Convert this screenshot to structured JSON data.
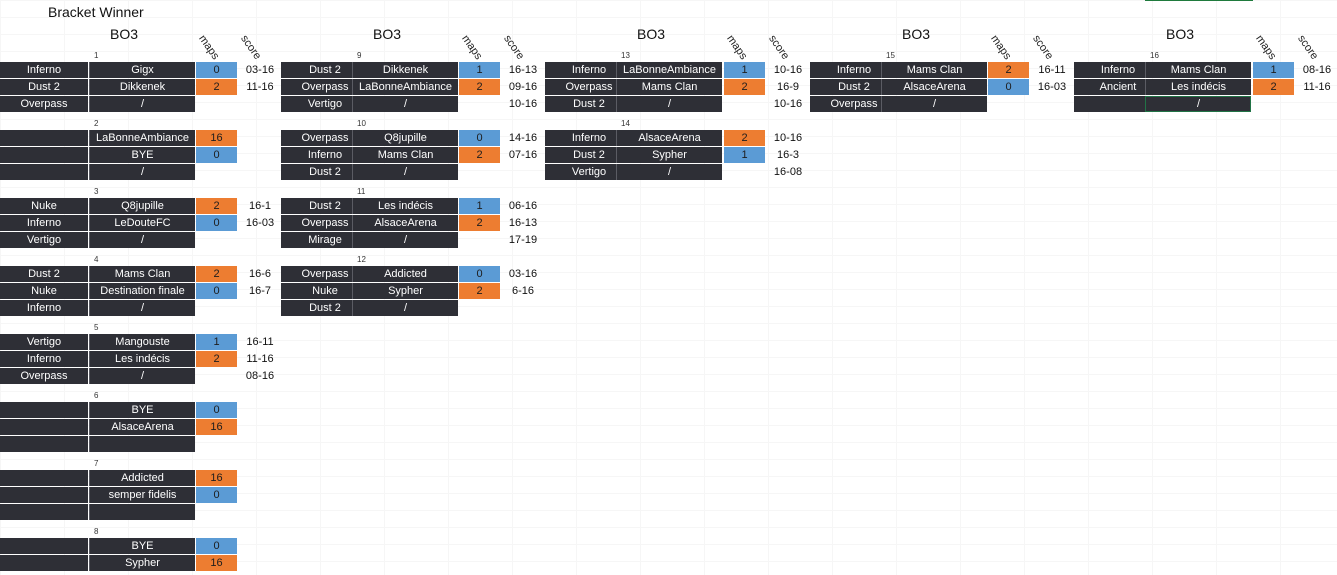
{
  "title": "Bracket Winner",
  "headers": {
    "format": "BO3",
    "maps": "maps",
    "score": "score"
  },
  "colors": {
    "dark": "#2e2f36",
    "blue": "#5b9bd5",
    "orange": "#ed7d31"
  },
  "rounds": [
    {
      "matches": [
        {
          "num": "1",
          "rows": [
            {
              "map": "Inferno",
              "team": "Gigx",
              "maps": "0",
              "color": "blue",
              "score": "03-16"
            },
            {
              "map": "Dust 2",
              "team": "Dikkenek",
              "maps": "2",
              "color": "orange",
              "score": "11-16"
            },
            {
              "map": "Overpass",
              "team": "/",
              "maps": "",
              "color": "",
              "score": ""
            }
          ]
        },
        {
          "num": "2",
          "rows": [
            {
              "map": "",
              "team": "LaBonneAmbiance",
              "maps": "16",
              "color": "orange",
              "score": ""
            },
            {
              "map": "",
              "team": "BYE",
              "maps": "0",
              "color": "blue",
              "score": ""
            },
            {
              "map": "",
              "team": "/",
              "maps": "",
              "color": "",
              "score": ""
            }
          ]
        },
        {
          "num": "3",
          "rows": [
            {
              "map": "Nuke",
              "team": "Q8jupille",
              "maps": "2",
              "color": "orange",
              "score": "16-1"
            },
            {
              "map": "Inferno",
              "team": "LeDouteFC",
              "maps": "0",
              "color": "blue",
              "score": "16-03"
            },
            {
              "map": "Vertigo",
              "team": "/",
              "maps": "",
              "color": "",
              "score": ""
            }
          ]
        },
        {
          "num": "4",
          "rows": [
            {
              "map": "Dust 2",
              "team": "Mams Clan",
              "maps": "2",
              "color": "orange",
              "score": "16-6"
            },
            {
              "map": "Nuke",
              "team": "Destination finale",
              "maps": "0",
              "color": "blue",
              "score": "16-7"
            },
            {
              "map": "Inferno",
              "team": "/",
              "maps": "",
              "color": "",
              "score": ""
            }
          ]
        },
        {
          "num": "5",
          "rows": [
            {
              "map": "Vertigo",
              "team": "Mangouste",
              "maps": "1",
              "color": "blue",
              "score": "16-11"
            },
            {
              "map": "Inferno",
              "team": "Les indécis",
              "maps": "2",
              "color": "orange",
              "score": "11-16"
            },
            {
              "map": "Overpass",
              "team": "/",
              "maps": "",
              "color": "",
              "score": "08-16"
            }
          ]
        },
        {
          "num": "6",
          "rows": [
            {
              "map": "",
              "team": "BYE",
              "maps": "0",
              "color": "blue",
              "score": ""
            },
            {
              "map": "",
              "team": "AlsaceArena",
              "maps": "16",
              "color": "orange",
              "score": ""
            },
            {
              "map": "",
              "team": "",
              "maps": "",
              "color": "",
              "score": ""
            }
          ]
        },
        {
          "num": "7",
          "rows": [
            {
              "map": "",
              "team": "Addicted",
              "maps": "16",
              "color": "orange",
              "score": ""
            },
            {
              "map": "",
              "team": "semper fidelis",
              "maps": "0",
              "color": "blue",
              "score": ""
            },
            {
              "map": "",
              "team": "",
              "maps": "",
              "color": "",
              "score": ""
            }
          ]
        },
        {
          "num": "8",
          "rows": [
            {
              "map": "",
              "team": "BYE",
              "maps": "0",
              "color": "blue",
              "score": ""
            },
            {
              "map": "",
              "team": "Sypher",
              "maps": "16",
              "color": "orange",
              "score": ""
            }
          ]
        }
      ]
    },
    {
      "matches": [
        {
          "num": "9",
          "rows": [
            {
              "map": "Dust 2",
              "team": "Dikkenek",
              "maps": "1",
              "color": "blue",
              "score": "16-13"
            },
            {
              "map": "Overpass",
              "team": "LaBonneAmbiance",
              "maps": "2",
              "color": "orange",
              "score": "09-16"
            },
            {
              "map": "Vertigo",
              "team": "/",
              "maps": "",
              "color": "",
              "score": "10-16"
            }
          ]
        },
        {
          "num": "10",
          "rows": [
            {
              "map": "Overpass",
              "team": "Q8jupille",
              "maps": "0",
              "color": "blue",
              "score": "14-16"
            },
            {
              "map": "Inferno",
              "team": "Mams Clan",
              "maps": "2",
              "color": "orange",
              "score": "07-16"
            },
            {
              "map": "Dust 2",
              "team": "/",
              "maps": "",
              "color": "",
              "score": ""
            }
          ]
        },
        {
          "num": "11",
          "rows": [
            {
              "map": "Dust 2",
              "team": "Les indécis",
              "maps": "1",
              "color": "blue",
              "score": "06-16"
            },
            {
              "map": "Overpass",
              "team": "AlsaceArena",
              "maps": "2",
              "color": "orange",
              "score": "16-13"
            },
            {
              "map": "Mirage",
              "team": "/",
              "maps": "",
              "color": "",
              "score": "17-19"
            }
          ]
        },
        {
          "num": "12",
          "rows": [
            {
              "map": "Overpass",
              "team": "Addicted",
              "maps": "0",
              "color": "blue",
              "score": "03-16"
            },
            {
              "map": "Nuke",
              "team": "Sypher",
              "maps": "2",
              "color": "orange",
              "score": "6-16"
            },
            {
              "map": "Dust 2",
              "team": "/",
              "maps": "",
              "color": "",
              "score": ""
            }
          ]
        }
      ]
    },
    {
      "matches": [
        {
          "num": "13",
          "rows": [
            {
              "map": "Inferno",
              "team": "LaBonneAmbiance",
              "maps": "1",
              "color": "blue",
              "score": "10-16"
            },
            {
              "map": "Overpass",
              "team": "Mams Clan",
              "maps": "2",
              "color": "orange",
              "score": "16-9"
            },
            {
              "map": "Dust 2",
              "team": "/",
              "maps": "",
              "color": "",
              "score": "10-16"
            }
          ]
        },
        {
          "num": "14",
          "rows": [
            {
              "map": "Inferno",
              "team": "AlsaceArena",
              "maps": "2",
              "color": "orange",
              "score": "10-16"
            },
            {
              "map": "Dust 2",
              "team": "Sypher",
              "maps": "1",
              "color": "blue",
              "score": "16-3"
            },
            {
              "map": "Vertigo",
              "team": "/",
              "maps": "",
              "color": "",
              "score": "16-08"
            }
          ]
        }
      ]
    },
    {
      "matches": [
        {
          "num": "15",
          "rows": [
            {
              "map": "Inferno",
              "team": "Mams Clan",
              "maps": "2",
              "color": "orange",
              "score": "16-11"
            },
            {
              "map": "Dust 2",
              "team": "AlsaceArena",
              "maps": "0",
              "color": "blue",
              "score": "16-03"
            },
            {
              "map": "Overpass",
              "team": "/",
              "maps": "",
              "color": "",
              "score": ""
            }
          ]
        }
      ]
    },
    {
      "matches": [
        {
          "num": "16",
          "rows": [
            {
              "map": "Inferno",
              "team": "Mams Clan",
              "maps": "1",
              "color": "blue",
              "score": "08-16"
            },
            {
              "map": "Ancient",
              "team": "Les indécis",
              "maps": "2",
              "color": "orange",
              "score": "11-16"
            },
            {
              "map": "",
              "team": "/",
              "maps": "",
              "color": "",
              "score": ""
            }
          ]
        }
      ]
    }
  ]
}
